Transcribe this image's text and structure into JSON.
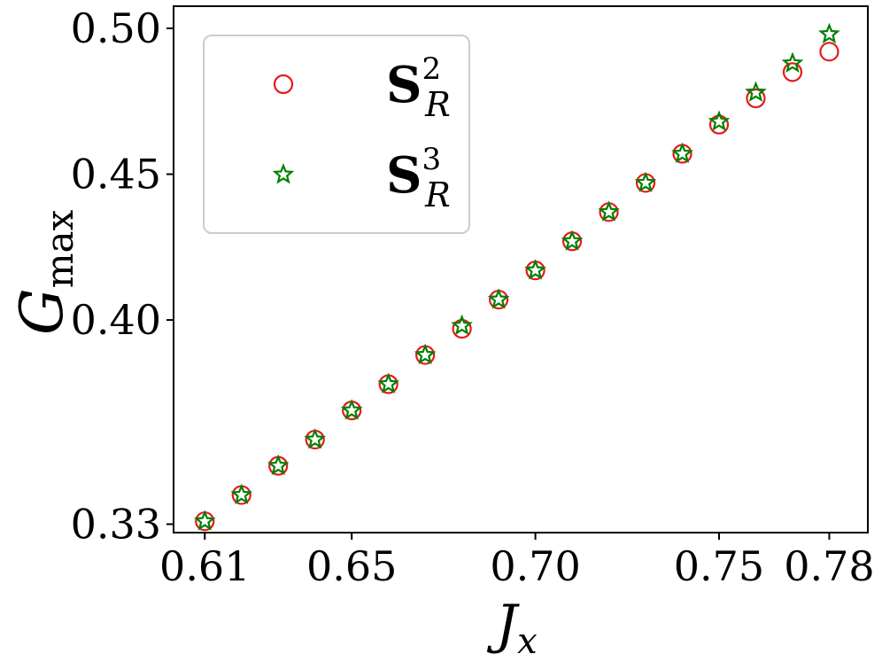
{
  "chart_data": {
    "type": "scatter",
    "xlabel": {
      "main": "J",
      "sub": "x"
    },
    "ylabel": {
      "main": "G",
      "sub": "max"
    },
    "xlim": [
      0.6015,
      0.7905
    ],
    "ylim": [
      0.3271,
      0.5076
    ],
    "xticks": [
      {
        "value": 0.61,
        "label": "0.61"
      },
      {
        "value": 0.65,
        "label": "0.65"
      },
      {
        "value": 0.7,
        "label": "0.70"
      },
      {
        "value": 0.75,
        "label": "0.75"
      },
      {
        "value": 0.78,
        "label": "0.78"
      }
    ],
    "yticks": [
      {
        "value": 0.33,
        "label": "0.33"
      },
      {
        "value": 0.4,
        "label": "0.40"
      },
      {
        "value": 0.45,
        "label": "0.45"
      },
      {
        "value": 0.5,
        "label": "0.50"
      }
    ],
    "grid": false,
    "legend_position": "top-left",
    "series": [
      {
        "name": "S²_R",
        "legend_main": "S",
        "legend_sup": "2",
        "legend_sub": "R",
        "marker": "circle",
        "color": "#e41a1c",
        "x": [
          0.61,
          0.62,
          0.63,
          0.64,
          0.65,
          0.66,
          0.67,
          0.68,
          0.69,
          0.7,
          0.71,
          0.72,
          0.73,
          0.74,
          0.75,
          0.76,
          0.77,
          0.78
        ],
        "y": [
          0.331,
          0.34,
          0.35,
          0.359,
          0.369,
          0.378,
          0.388,
          0.397,
          0.407,
          0.417,
          0.427,
          0.437,
          0.447,
          0.457,
          0.467,
          0.476,
          0.485,
          0.492
        ]
      },
      {
        "name": "S³_R",
        "legend_main": "S",
        "legend_sup": "3",
        "legend_sub": "R",
        "marker": "star",
        "color": "#008000",
        "x": [
          0.61,
          0.62,
          0.63,
          0.64,
          0.65,
          0.66,
          0.67,
          0.68,
          0.69,
          0.7,
          0.71,
          0.72,
          0.73,
          0.74,
          0.75,
          0.76,
          0.77,
          0.78
        ],
        "y": [
          0.331,
          0.34,
          0.35,
          0.359,
          0.369,
          0.378,
          0.388,
          0.398,
          0.407,
          0.417,
          0.427,
          0.437,
          0.447,
          0.457,
          0.468,
          0.478,
          0.488,
          0.498
        ]
      }
    ]
  }
}
